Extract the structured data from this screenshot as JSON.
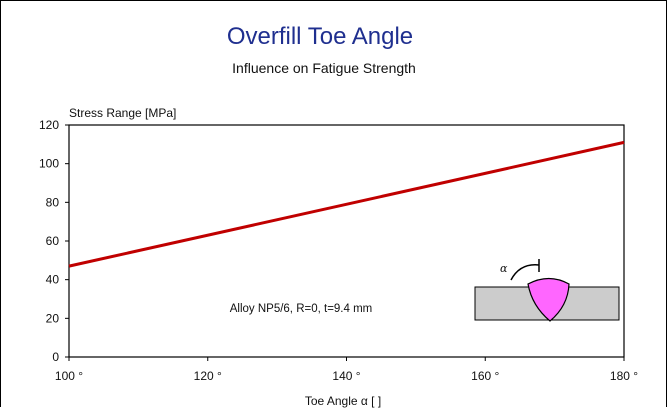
{
  "chart_data": {
    "type": "line",
    "title": "Overfill Toe Angle",
    "subtitle": "Influence on Fatigue Strength",
    "ylabel": "Stress Range [MPa]",
    "xlabel": "Toe Angle α [ ]",
    "x_unit": "°",
    "xlim": [
      100,
      180
    ],
    "ylim": [
      0,
      120
    ],
    "x_ticks": [
      100,
      120,
      140,
      160,
      180
    ],
    "y_ticks": [
      0,
      20,
      40,
      60,
      80,
      100,
      120
    ],
    "grid": false,
    "series": [
      {
        "x": [
          100,
          180
        ],
        "y": [
          47,
          111
        ],
        "color": "#c00000"
      }
    ],
    "annotation": "Alloy NP5/6, R=0, t=9.4 mm",
    "inset": {
      "symbol": "α",
      "plate_color": "#cccccc",
      "weld_color": "#ff66ff"
    }
  }
}
